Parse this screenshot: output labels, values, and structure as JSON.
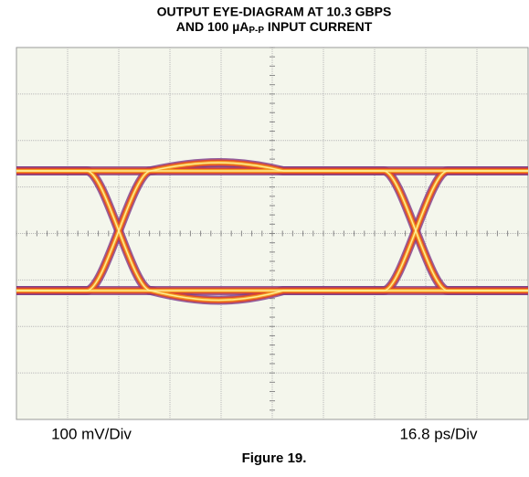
{
  "title": {
    "line1": "OUTPUT EYE-DIAGRAM AT 10.3 GBPS",
    "line2_before": "AND 100 µA",
    "line2_sub": "P-P",
    "line2_after": " INPUT CURRENT"
  },
  "vertical_scale": "100 mV/Div",
  "horizontal_scale": "16.8 ps/Div",
  "caption": "Figure 19."
}
